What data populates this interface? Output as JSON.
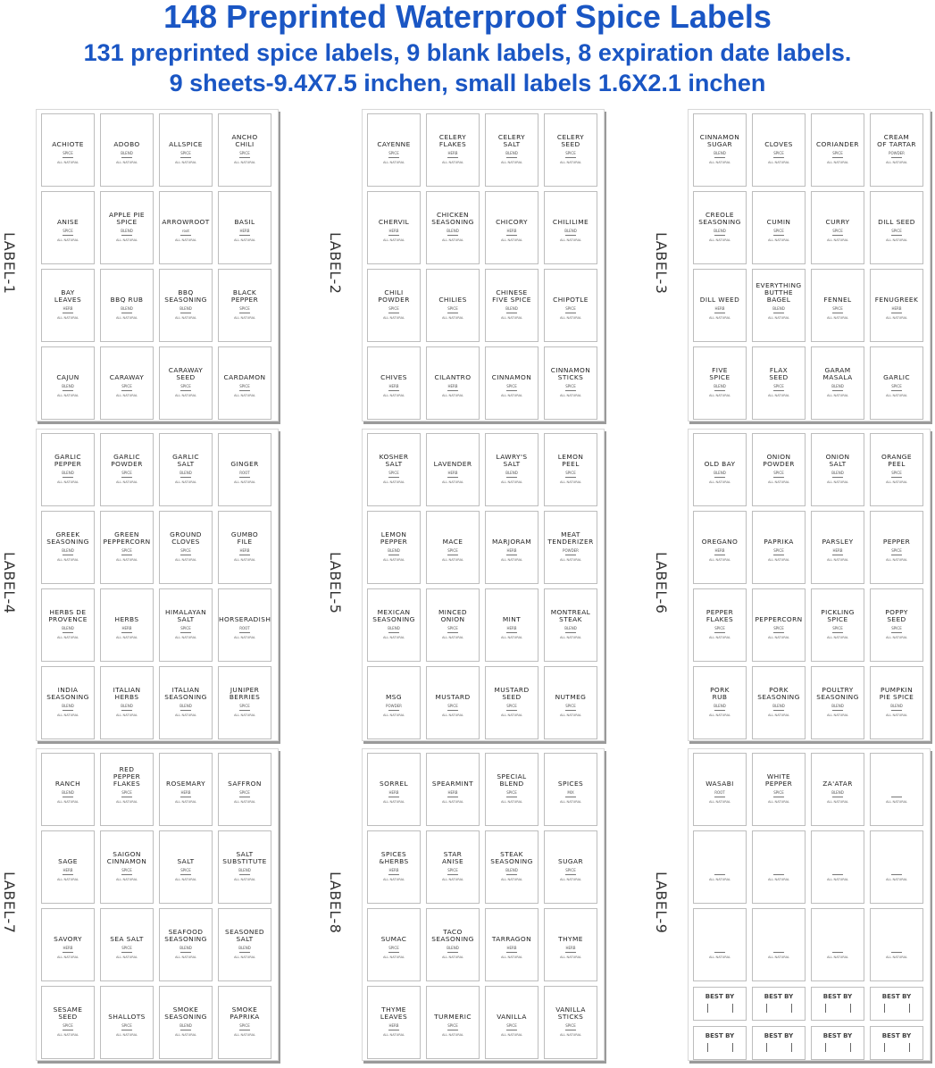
{
  "header": {
    "title": "148 Preprinted Waterproof Spice Labels",
    "subtitle": "131 preprinted spice labels, 9 blank labels, 8 expiration date labels.",
    "specs": "9 sheets-9.4X7.5 inchen, small labels 1.6X2.1 inchen"
  },
  "colors": {
    "title": "#1a56c4",
    "label_border": "#bdbdbd"
  },
  "footer_text": "ALL NATURAL",
  "best_by_text": "BEST BY",
  "sheets": [
    {
      "label": "LABEL-1",
      "items": [
        {
          "name": "ACHIOTE",
          "type": "SPICE"
        },
        {
          "name": "ADOBO",
          "type": "BLEND"
        },
        {
          "name": "ALLSPICE",
          "type": "SPICE"
        },
        {
          "name": "ANCHO\nCHILI",
          "type": "SPICE"
        },
        {
          "name": "ANISE",
          "type": "SPICE"
        },
        {
          "name": "APPLE PIE\nSPICE",
          "type": "BLEND"
        },
        {
          "name": "ARROWROOT",
          "type": "root"
        },
        {
          "name": "BASIL",
          "type": "HERB"
        },
        {
          "name": "BAY\nLEAVES",
          "type": "HERB"
        },
        {
          "name": "BBQ RUB",
          "type": "BLEND"
        },
        {
          "name": "BBQ\nSEASONING",
          "type": "BLEND"
        },
        {
          "name": "BLACK\nPEPPER",
          "type": "SPICE"
        },
        {
          "name": "CAJUN",
          "type": "BLEND"
        },
        {
          "name": "CARAWAY",
          "type": "SPICE"
        },
        {
          "name": "CARAWAY\nSEED",
          "type": "SPICE"
        },
        {
          "name": "CARDAMON",
          "type": "SPICE"
        }
      ]
    },
    {
      "label": "LABEL-2",
      "items": [
        {
          "name": "CAYENNE",
          "type": "SPICE"
        },
        {
          "name": "CELERY\nFLAKES",
          "type": "HERB"
        },
        {
          "name": "CELERY\nSALT",
          "type": "BLEND"
        },
        {
          "name": "CELERY\nSEED",
          "type": "SPICE"
        },
        {
          "name": "CHERVIL",
          "type": "HERB"
        },
        {
          "name": "CHICKEN\nSEASONING",
          "type": "BLEND"
        },
        {
          "name": "CHICORY",
          "type": "HERB"
        },
        {
          "name": "CHILILIME",
          "type": "BLEND"
        },
        {
          "name": "CHILI\nPOWDER",
          "type": "SPICE"
        },
        {
          "name": "CHILIES",
          "type": "SPICE"
        },
        {
          "name": "CHINESE\nFIVE SPICE",
          "type": "BLEND"
        },
        {
          "name": "CHIPOTLE",
          "type": "SPICE"
        },
        {
          "name": "CHIVES",
          "type": "HERB"
        },
        {
          "name": "CILANTRO",
          "type": "HERB"
        },
        {
          "name": "CINNAMON",
          "type": "SPICE"
        },
        {
          "name": "CINNAMON\nSTICKS",
          "type": "SPICE"
        }
      ]
    },
    {
      "label": "LABEL-3",
      "items": [
        {
          "name": "CINNAMON\nSUGAR",
          "type": "BLEND"
        },
        {
          "name": "CLOVES",
          "type": "SPICE"
        },
        {
          "name": "CORIANDER",
          "type": "SPICE"
        },
        {
          "name": "CREAM\nOF TARTAR",
          "type": "POWDER"
        },
        {
          "name": "CREOLE\nSEASONING",
          "type": "BLEND"
        },
        {
          "name": "CUMIN",
          "type": "SPICE"
        },
        {
          "name": "CURRY",
          "type": "SPICE"
        },
        {
          "name": "DILL SEED",
          "type": "SPICE"
        },
        {
          "name": "DILL WEED",
          "type": "HERB"
        },
        {
          "name": "EVERYTHING\nBUTTHE\nBAGEL",
          "type": "BLEND"
        },
        {
          "name": "FENNEL",
          "type": "SPICE"
        },
        {
          "name": "FENUGREEK",
          "type": "HERB"
        },
        {
          "name": "FIVE\nSPICE",
          "type": "BLEND"
        },
        {
          "name": "FLAX\nSEED",
          "type": "SPICE"
        },
        {
          "name": "GARAM\nMASALA",
          "type": "BLEND"
        },
        {
          "name": "GARLIC",
          "type": "SPICE"
        }
      ]
    },
    {
      "label": "LABEL-4",
      "items": [
        {
          "name": "GARLIC\nPEPPER",
          "type": "BLEND"
        },
        {
          "name": "GARLIC\nPOWDER",
          "type": "SPICE"
        },
        {
          "name": "GARLIC\nSALT",
          "type": "BLEND"
        },
        {
          "name": "GINGER",
          "type": "ROOT"
        },
        {
          "name": "GREEK\nSEASONING",
          "type": "BLEND"
        },
        {
          "name": "GREEN\nPEPPERCORN",
          "type": "SPICE"
        },
        {
          "name": "GROUND\nCLOVES",
          "type": "SPICE"
        },
        {
          "name": "GUMBO\nFILE",
          "type": "HERB"
        },
        {
          "name": "HERBS DE\nPROVENCE",
          "type": "BLEND"
        },
        {
          "name": "HERBS",
          "type": "HERB"
        },
        {
          "name": "HIMALAYAN\nSALT",
          "type": "SPICE"
        },
        {
          "name": "HORSERADISH",
          "type": "ROOT"
        },
        {
          "name": "INDIA\nSEASONING",
          "type": "BLEND"
        },
        {
          "name": "ITALIAN\nHERBS",
          "type": "BLEND"
        },
        {
          "name": "ITALIAN\nSEASONING",
          "type": "BLEND"
        },
        {
          "name": "JUNIPER\nBERRIES",
          "type": "SPICE"
        }
      ]
    },
    {
      "label": "LABEL-5",
      "items": [
        {
          "name": "KOSHER\nSALT",
          "type": "SPICE"
        },
        {
          "name": "LAVENDER",
          "type": "HERB"
        },
        {
          "name": "LAWRY'S\nSALT",
          "type": "BLEND"
        },
        {
          "name": "LEMON\nPEEL",
          "type": "SPICE"
        },
        {
          "name": "LEMON\nPEPPER",
          "type": "BLEND"
        },
        {
          "name": "MACE",
          "type": "SPICE"
        },
        {
          "name": "MARJORAM",
          "type": "HERB"
        },
        {
          "name": "MEAT\nTENDERIZER",
          "type": "POWDER"
        },
        {
          "name": "MEXICAN\nSEASONING",
          "type": "BLEND"
        },
        {
          "name": "MINCED\nONION",
          "type": "SPICE"
        },
        {
          "name": "MINT",
          "type": "HERB"
        },
        {
          "name": "MONTREAL\nSTEAK",
          "type": "BLEND"
        },
        {
          "name": "MSG",
          "type": "POWDER"
        },
        {
          "name": "MUSTARD",
          "type": "SPICE"
        },
        {
          "name": "MUSTARD\nSEED",
          "type": "SPICE"
        },
        {
          "name": "NUTMEG",
          "type": "SPICE"
        }
      ]
    },
    {
      "label": "LABEL-6",
      "items": [
        {
          "name": "OLD BAY",
          "type": "BLEND"
        },
        {
          "name": "ONION\nPOWDER",
          "type": "SPICE"
        },
        {
          "name": "ONION\nSALT",
          "type": "BLEND"
        },
        {
          "name": "ORANGE\nPEEL",
          "type": "SPICE"
        },
        {
          "name": "OREGANO",
          "type": "HERB"
        },
        {
          "name": "PAPRIKA",
          "type": "SPICE"
        },
        {
          "name": "PARSLEY",
          "type": "HERB"
        },
        {
          "name": "PEPPER",
          "type": "SPICE"
        },
        {
          "name": "PEPPER\nFLAKES",
          "type": "SPICE"
        },
        {
          "name": "PEPPERCORN",
          "type": "SPICE"
        },
        {
          "name": "PICKLING\nSPICE",
          "type": "SPICE"
        },
        {
          "name": "POPPY\nSEED",
          "type": "SPICE"
        },
        {
          "name": "PORK\nRUB",
          "type": "BLEND"
        },
        {
          "name": "PORK\nSEASONING",
          "type": "BLEND"
        },
        {
          "name": "POULTRY\nSEASONING",
          "type": "BLEND"
        },
        {
          "name": "PUMPKIN\nPIE SPICE",
          "type": "BLEND"
        }
      ]
    },
    {
      "label": "LABEL-7",
      "items": [
        {
          "name": "RANCH",
          "type": "BLEND"
        },
        {
          "name": "RED\nPEPPER\nFLAKES",
          "type": "SPICE"
        },
        {
          "name": "ROSEMARY",
          "type": "HERB"
        },
        {
          "name": "SAFFRON",
          "type": "SPICE"
        },
        {
          "name": "SAGE",
          "type": "HERB"
        },
        {
          "name": "SAIGON\nCINNAMON",
          "type": "SPICE"
        },
        {
          "name": "SALT",
          "type": "SPICE"
        },
        {
          "name": "SALT\nSUBSTITUTE",
          "type": "BLEND"
        },
        {
          "name": "SAVORY",
          "type": "HERB"
        },
        {
          "name": "SEA SALT",
          "type": "SPICE"
        },
        {
          "name": "SEAFOOD\nSEASONING",
          "type": "BLEND"
        },
        {
          "name": "SEASONED\nSALT",
          "type": "BLEND"
        },
        {
          "name": "SESAME\nSEED",
          "type": "SPICE"
        },
        {
          "name": "SHALLOTS",
          "type": "SPICE"
        },
        {
          "name": "SMOKE\nSEASONING",
          "type": "BLEND"
        },
        {
          "name": "SMOKE\nPAPRIKA",
          "type": "SPICE"
        }
      ]
    },
    {
      "label": "LABEL-8",
      "items": [
        {
          "name": "SORREL",
          "type": "HERB"
        },
        {
          "name": "SPEARMINT",
          "type": "HERB"
        },
        {
          "name": "SPECIAL\nBLEND",
          "type": "SPICE"
        },
        {
          "name": "SPICES",
          "type": "MIX"
        },
        {
          "name": "SPICES\n&HERBS",
          "type": "HERB"
        },
        {
          "name": "STAR\nANISE",
          "type": "SPICE"
        },
        {
          "name": "STEAK\nSEASONING",
          "type": "BLEND"
        },
        {
          "name": "SUGAR",
          "type": "SPICE"
        },
        {
          "name": "SUMAC",
          "type": "SPICE"
        },
        {
          "name": "TACO\nSEASONING",
          "type": "BLEND"
        },
        {
          "name": "TARRAGON",
          "type": "HERB"
        },
        {
          "name": "THYME",
          "type": "HERB"
        },
        {
          "name": "THYME\nLEAVES",
          "type": "HERB"
        },
        {
          "name": "TURMERIC",
          "type": "SPICE"
        },
        {
          "name": "VANILLA",
          "type": "SPICE"
        },
        {
          "name": "VANILLA\nSTICKS",
          "type": "SPICE"
        }
      ]
    },
    {
      "label": "LABEL-9",
      "items": [
        {
          "name": "WASABI",
          "type": "ROOT"
        },
        {
          "name": "WHITE\nPEPPER",
          "type": "SPICE"
        },
        {
          "name": "ZA'ATAR",
          "type": "BLEND"
        },
        {
          "name": "",
          "type": ""
        },
        {
          "name": "",
          "type": ""
        },
        {
          "name": "",
          "type": ""
        },
        {
          "name": "",
          "type": ""
        },
        {
          "name": "",
          "type": ""
        },
        {
          "name": "",
          "type": ""
        },
        {
          "name": "",
          "type": ""
        },
        {
          "name": "",
          "type": ""
        },
        {
          "name": "",
          "type": ""
        }
      ],
      "best_by_count": 8
    }
  ]
}
